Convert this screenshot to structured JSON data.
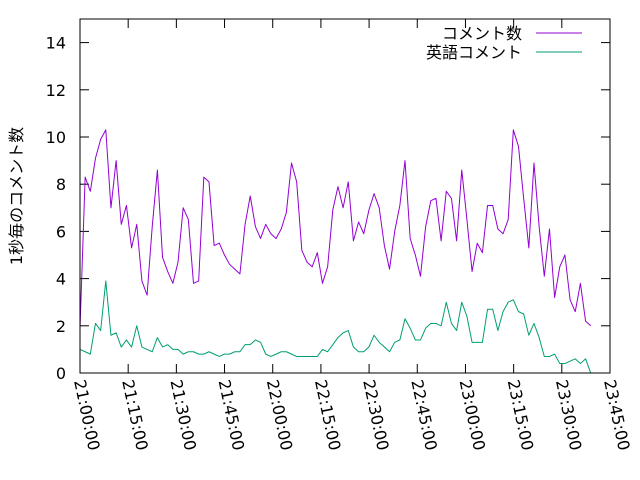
{
  "chart_data": {
    "type": "line",
    "title": "",
    "xlabel": "",
    "ylabel": "1秒毎のコメント数",
    "ylim": [
      0,
      15
    ],
    "yticks": [
      0,
      2,
      4,
      6,
      8,
      10,
      12,
      14
    ],
    "xlim": [
      "21:00:00",
      "23:45:00"
    ],
    "xticks": [
      "21:00:00",
      "21:15:00",
      "21:30:00",
      "21:45:00",
      "22:00:00",
      "22:15:00",
      "22:30:00",
      "22:45:00",
      "23:00:00",
      "23:15:00",
      "23:30:00",
      "23:45:00"
    ],
    "grid": false,
    "legend": "top-right",
    "x_start": "21:00:00",
    "x_end": "23:39:00",
    "series": [
      {
        "name": "コメント数",
        "color": "#9400d3",
        "values": [
          1.9,
          8.3,
          7.7,
          9.1,
          9.9,
          10.3,
          7.0,
          9.0,
          6.3,
          7.1,
          5.3,
          6.3,
          3.9,
          3.3,
          6.2,
          8.6,
          4.9,
          4.3,
          3.8,
          4.7,
          7.0,
          6.5,
          3.8,
          3.9,
          8.3,
          8.1,
          5.4,
          5.5,
          5.0,
          4.6,
          4.4,
          4.2,
          6.3,
          7.5,
          6.2,
          5.7,
          6.3,
          5.9,
          5.7,
          6.1,
          6.8,
          8.9,
          8.1,
          5.2,
          4.7,
          4.5,
          5.1,
          3.8,
          4.5,
          6.9,
          7.9,
          7.0,
          8.1,
          5.6,
          6.4,
          5.9,
          6.9,
          7.6,
          7.0,
          5.4,
          4.4,
          6.0,
          7.1,
          9.0,
          5.7,
          5.0,
          4.1,
          6.2,
          7.3,
          7.4,
          5.6,
          7.7,
          7.4,
          5.6,
          8.6,
          6.5,
          4.3,
          5.5,
          5.1,
          7.1,
          7.1,
          6.1,
          5.9,
          6.5,
          10.3,
          9.6,
          7.4,
          5.3,
          8.9,
          6.2,
          4.1,
          6.1,
          3.2,
          4.5,
          5.0,
          3.1,
          2.6,
          3.8,
          2.2,
          2.0
        ]
      },
      {
        "name": "英語コメント",
        "color": "#009e73",
        "values": [
          1.0,
          0.9,
          0.8,
          2.1,
          1.8,
          3.9,
          1.6,
          1.7,
          1.1,
          1.4,
          1.1,
          2.0,
          1.1,
          1.0,
          0.9,
          1.5,
          1.1,
          1.2,
          1.0,
          1.0,
          0.8,
          0.9,
          0.9,
          0.8,
          0.8,
          0.9,
          0.8,
          0.7,
          0.8,
          0.8,
          0.9,
          0.9,
          1.2,
          1.2,
          1.4,
          1.3,
          0.8,
          0.7,
          0.8,
          0.9,
          0.9,
          0.8,
          0.7,
          0.7,
          0.7,
          0.7,
          0.7,
          1.0,
          0.9,
          1.2,
          1.5,
          1.7,
          1.8,
          1.1,
          0.9,
          0.9,
          1.1,
          1.6,
          1.3,
          1.1,
          0.9,
          1.3,
          1.4,
          2.3,
          1.9,
          1.4,
          1.4,
          1.9,
          2.1,
          2.1,
          2.0,
          3.0,
          2.1,
          1.8,
          3.0,
          2.4,
          1.3,
          1.3,
          1.3,
          2.7,
          2.7,
          1.8,
          2.6,
          3.0,
          3.1,
          2.6,
          2.5,
          1.6,
          2.1,
          1.5,
          0.7,
          0.7,
          0.8,
          0.4,
          0.4,
          0.5,
          0.6,
          0.4,
          0.6,
          0.0
        ]
      }
    ]
  }
}
